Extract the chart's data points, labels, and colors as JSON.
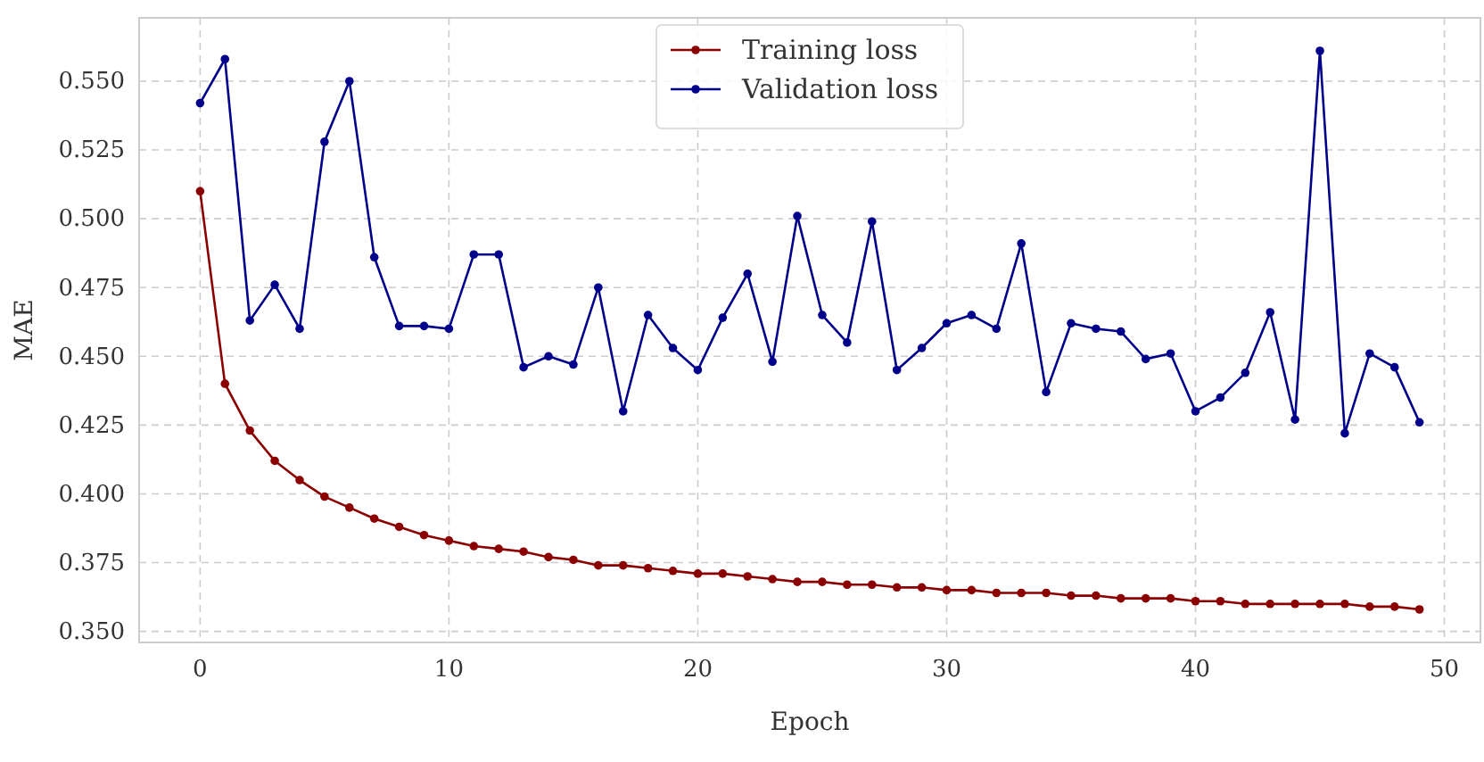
{
  "chart_data": {
    "type": "line",
    "xlabel": "Epoch",
    "ylabel": "MAE",
    "x": [
      0,
      1,
      2,
      3,
      4,
      5,
      6,
      7,
      8,
      9,
      10,
      11,
      12,
      13,
      14,
      15,
      16,
      17,
      18,
      19,
      20,
      21,
      22,
      23,
      24,
      25,
      26,
      27,
      28,
      29,
      30,
      31,
      32,
      33,
      34,
      35,
      36,
      37,
      38,
      39,
      40,
      41,
      42,
      43,
      44,
      45,
      46,
      47,
      48,
      49
    ],
    "series": [
      {
        "name": "Training loss",
        "color": "#8b0000",
        "values": [
          0.51,
          0.44,
          0.423,
          0.412,
          0.405,
          0.399,
          0.395,
          0.391,
          0.388,
          0.385,
          0.383,
          0.381,
          0.38,
          0.379,
          0.377,
          0.376,
          0.374,
          0.374,
          0.373,
          0.372,
          0.371,
          0.371,
          0.37,
          0.369,
          0.368,
          0.368,
          0.367,
          0.367,
          0.366,
          0.366,
          0.365,
          0.365,
          0.364,
          0.364,
          0.364,
          0.363,
          0.363,
          0.362,
          0.362,
          0.362,
          0.361,
          0.361,
          0.36,
          0.36,
          0.36,
          0.36,
          0.36,
          0.359,
          0.359,
          0.358
        ]
      },
      {
        "name": "Validation loss",
        "color": "#00008b",
        "values": [
          0.542,
          0.558,
          0.463,
          0.476,
          0.46,
          0.528,
          0.55,
          0.486,
          0.461,
          0.461,
          0.46,
          0.487,
          0.487,
          0.446,
          0.45,
          0.447,
          0.475,
          0.43,
          0.465,
          0.453,
          0.445,
          0.464,
          0.48,
          0.448,
          0.501,
          0.465,
          0.455,
          0.499,
          0.445,
          0.453,
          0.462,
          0.465,
          0.46,
          0.491,
          0.437,
          0.462,
          0.46,
          0.459,
          0.449,
          0.451,
          0.43,
          0.435,
          0.444,
          0.466,
          0.427,
          0.561,
          0.422,
          0.451,
          0.446,
          0.426
        ]
      }
    ],
    "xlim": [
      -2.45,
      51.45
    ],
    "xticks": [
      0,
      10,
      20,
      30,
      40,
      50
    ],
    "ylim": [
      0.346,
      0.573
    ],
    "yticks": [
      {
        "value": 0.35,
        "label": "0.350"
      },
      {
        "value": 0.375,
        "label": "0.375"
      },
      {
        "value": 0.4,
        "label": "0.400"
      },
      {
        "value": 0.425,
        "label": "0.425"
      },
      {
        "value": 0.45,
        "label": "0.450"
      },
      {
        "value": 0.475,
        "label": "0.475"
      },
      {
        "value": 0.5,
        "label": "0.500"
      },
      {
        "value": 0.525,
        "label": "0.525"
      },
      {
        "value": 0.55,
        "label": "0.550"
      }
    ],
    "grid": true,
    "legend": "top",
    "marker": "circle",
    "line_style": "solid"
  }
}
